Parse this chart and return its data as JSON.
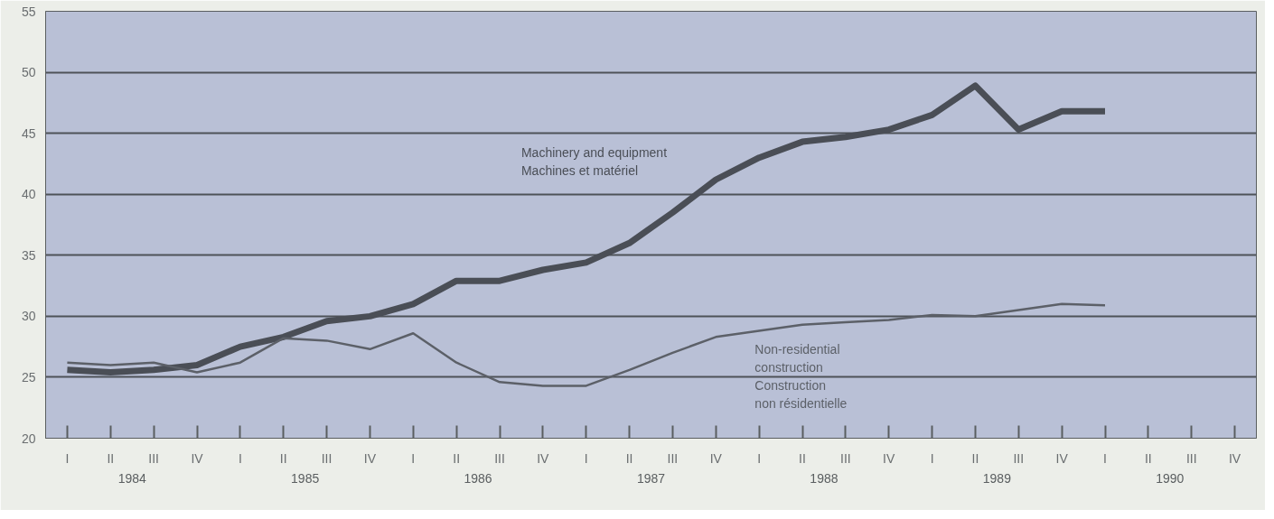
{
  "chart_data": {
    "type": "line",
    "categories": [
      "I",
      "II",
      "III",
      "IV",
      "I",
      "II",
      "III",
      "IV",
      "I",
      "II",
      "III",
      "IV",
      "I",
      "II",
      "III",
      "IV",
      "I",
      "II",
      "III",
      "IV",
      "I",
      "II",
      "III",
      "IV",
      "I",
      "II",
      "III",
      "IV"
    ],
    "series": [
      {
        "name": "Machinery and equipment\nMachines et matériel",
        "color": "#4a4e56",
        "values": [
          25.6,
          25.4,
          25.6,
          26.0,
          27.5,
          28.3,
          29.6,
          30.0,
          31.0,
          32.9,
          32.9,
          33.8,
          34.4,
          36.0,
          38.5,
          41.2,
          43.0,
          44.3,
          44.7,
          45.3,
          46.5,
          48.9,
          45.3,
          46.8,
          46.8,
          null,
          null,
          null
        ]
      },
      {
        "name": "Non-residential\nconstruction\nConstruction\nnon résidentielle",
        "color": "#5c6068",
        "values": [
          26.2,
          26.0,
          26.2,
          25.4,
          26.2,
          28.2,
          28.0,
          27.3,
          28.6,
          26.2,
          24.6,
          24.3,
          24.3,
          25.6,
          27.0,
          28.3,
          28.8,
          29.3,
          29.5,
          29.7,
          30.1,
          30.0,
          30.5,
          31.0,
          30.9,
          null,
          null,
          null
        ]
      }
    ],
    "ylim": [
      20,
      55
    ],
    "yticks": [
      20,
      25,
      30,
      35,
      40,
      45,
      50,
      55
    ],
    "grid": "y",
    "legend": false,
    "marker": "none",
    "line_style": "solid",
    "annotations": [
      "1984",
      "1985",
      "1986",
      "1987",
      "1988",
      "1989",
      "1990"
    ]
  }
}
